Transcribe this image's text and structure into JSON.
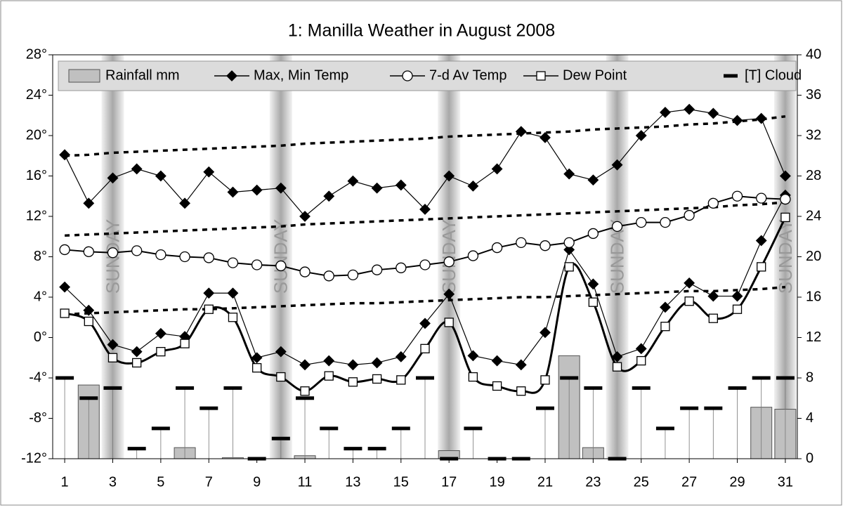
{
  "chart_data": {
    "type": "combo",
    "title": "1: Manilla Weather in August 2008",
    "x": [
      1,
      2,
      3,
      4,
      5,
      6,
      7,
      8,
      9,
      10,
      11,
      12,
      13,
      14,
      15,
      16,
      17,
      18,
      19,
      20,
      21,
      22,
      23,
      24,
      25,
      26,
      27,
      28,
      29,
      30,
      31
    ],
    "xlim": [
      0.5,
      31.5
    ],
    "xticks": [
      1,
      3,
      5,
      7,
      9,
      11,
      13,
      15,
      17,
      19,
      21,
      23,
      25,
      27,
      29,
      31
    ],
    "ylim": [
      -12,
      28
    ],
    "yticks": [
      {
        "value": -12,
        "label": "-12°"
      },
      {
        "value": -8,
        "label": "-8°"
      },
      {
        "value": -4,
        "label": "-4°"
      },
      {
        "value": 0,
        "label": "0°"
      },
      {
        "value": 4,
        "label": "4°"
      },
      {
        "value": 8,
        "label": "8°"
      },
      {
        "value": 12,
        "label": "12°"
      },
      {
        "value": 16,
        "label": "16°"
      },
      {
        "value": 20,
        "label": "20°"
      },
      {
        "value": 24,
        "label": "24°"
      },
      {
        "value": 28,
        "label": "28°"
      }
    ],
    "y2lim": [
      0,
      40
    ],
    "y2ticks": [
      0,
      4,
      8,
      12,
      16,
      20,
      24,
      28,
      32,
      36,
      40
    ],
    "sundays": [
      3,
      10,
      17,
      24,
      31
    ],
    "sunday_label": "SUNDAY",
    "series": [
      {
        "name": "Rainfall mm",
        "type": "bar",
        "axis": "y2",
        "color": "#c0c0c0",
        "values": [
          0,
          7.3,
          0,
          0,
          0,
          1.1,
          0,
          0.1,
          0,
          0,
          0.3,
          0,
          0,
          0,
          0,
          0,
          0.8,
          0,
          0,
          0,
          0,
          10.2,
          1.1,
          0,
          0,
          0,
          0,
          0,
          0,
          5.1,
          4.9
        ]
      },
      {
        "name": "Max, Min Temp",
        "type": "line",
        "marker": "diamond",
        "color": "#000000",
        "values": [
          18.1,
          13.3,
          15.8,
          16.7,
          16.0,
          13.3,
          16.4,
          14.4,
          14.6,
          14.8,
          12.0,
          14.0,
          15.5,
          14.8,
          15.1,
          12.7,
          16.0,
          15.0,
          16.7,
          20.4,
          19.8,
          16.2,
          15.6,
          17.1,
          20.0,
          22.3,
          22.6,
          22.2,
          21.5,
          21.7,
          16.0
        ],
        "min_values": [
          5.0,
          2.7,
          -0.7,
          -1.4,
          0.4,
          0.1,
          4.4,
          4.4,
          -2.0,
          -1.4,
          -2.7,
          -2.3,
          -2.7,
          -2.5,
          -1.9,
          1.4,
          4.3,
          -1.8,
          -2.3,
          -2.7,
          0.5,
          8.7,
          5.3,
          -1.9,
          -1.1,
          3.0,
          5.4,
          4.1,
          4.1,
          9.6,
          14.1
        ]
      },
      {
        "name": "7-d Av Temp",
        "type": "line",
        "marker": "circle",
        "color": "#000000",
        "values": [
          8.7,
          8.5,
          8.4,
          8.6,
          8.2,
          8.0,
          7.9,
          7.4,
          7.2,
          7.1,
          6.5,
          6.1,
          6.2,
          6.7,
          6.9,
          7.2,
          7.5,
          8.1,
          8.9,
          9.4,
          9.1,
          9.4,
          10.3,
          11.0,
          11.4,
          11.4,
          12.1,
          13.3,
          14.0,
          13.8,
          13.7
        ],
        "normal_lines": [
          [
            18.0,
            18.1,
            18.3,
            18.4,
            18.5,
            18.6,
            18.7,
            18.8,
            18.9,
            19.0,
            19.2,
            19.3,
            19.4,
            19.5,
            19.6,
            19.7,
            19.9,
            20.0,
            20.1,
            20.2,
            20.3,
            20.4,
            20.6,
            20.7,
            20.8,
            20.9,
            21.1,
            21.2,
            21.4,
            21.6,
            21.9
          ],
          [
            10.1,
            10.2,
            10.3,
            10.4,
            10.5,
            10.6,
            10.7,
            10.8,
            10.9,
            11.0,
            11.2,
            11.3,
            11.4,
            11.5,
            11.6,
            11.7,
            11.8,
            11.9,
            12.0,
            12.1,
            12.2,
            12.3,
            12.4,
            12.5,
            12.6,
            12.7,
            12.8,
            12.9,
            13.1,
            13.2,
            13.4
          ],
          [
            2.3,
            2.4,
            2.5,
            2.6,
            2.7,
            2.8,
            2.8,
            2.9,
            3.0,
            3.1,
            3.2,
            3.3,
            3.4,
            3.4,
            3.5,
            3.6,
            3.7,
            3.8,
            3.9,
            4.0,
            4.0,
            4.1,
            4.2,
            4.3,
            4.4,
            4.5,
            4.6,
            4.6,
            4.7,
            4.8,
            5.0
          ]
        ]
      },
      {
        "name": "Dew Point",
        "type": "line",
        "marker": "square",
        "color": "#000000",
        "smooth": true,
        "values": [
          2.4,
          1.6,
          -2.0,
          -2.5,
          -1.4,
          -0.6,
          2.8,
          2.0,
          -3.0,
          -3.9,
          -5.3,
          -3.8,
          -4.4,
          -4.1,
          -4.2,
          -1.1,
          1.5,
          -3.9,
          -4.8,
          -5.3,
          -4.2,
          7.0,
          3.5,
          -2.9,
          -2.3,
          1.1,
          3.6,
          1.9,
          2.8,
          7.0,
          11.9
        ]
      },
      {
        "name": "[T] Cloud",
        "type": "dash",
        "axis": "y2",
        "color": "#000000",
        "values": [
          8,
          6,
          7,
          1,
          3,
          7,
          5,
          7,
          0,
          2,
          6,
          3,
          1,
          1,
          3,
          8,
          0,
          3,
          0,
          0,
          5,
          8,
          7,
          0,
          7,
          3,
          5,
          5,
          7,
          8,
          8
        ]
      }
    ]
  }
}
